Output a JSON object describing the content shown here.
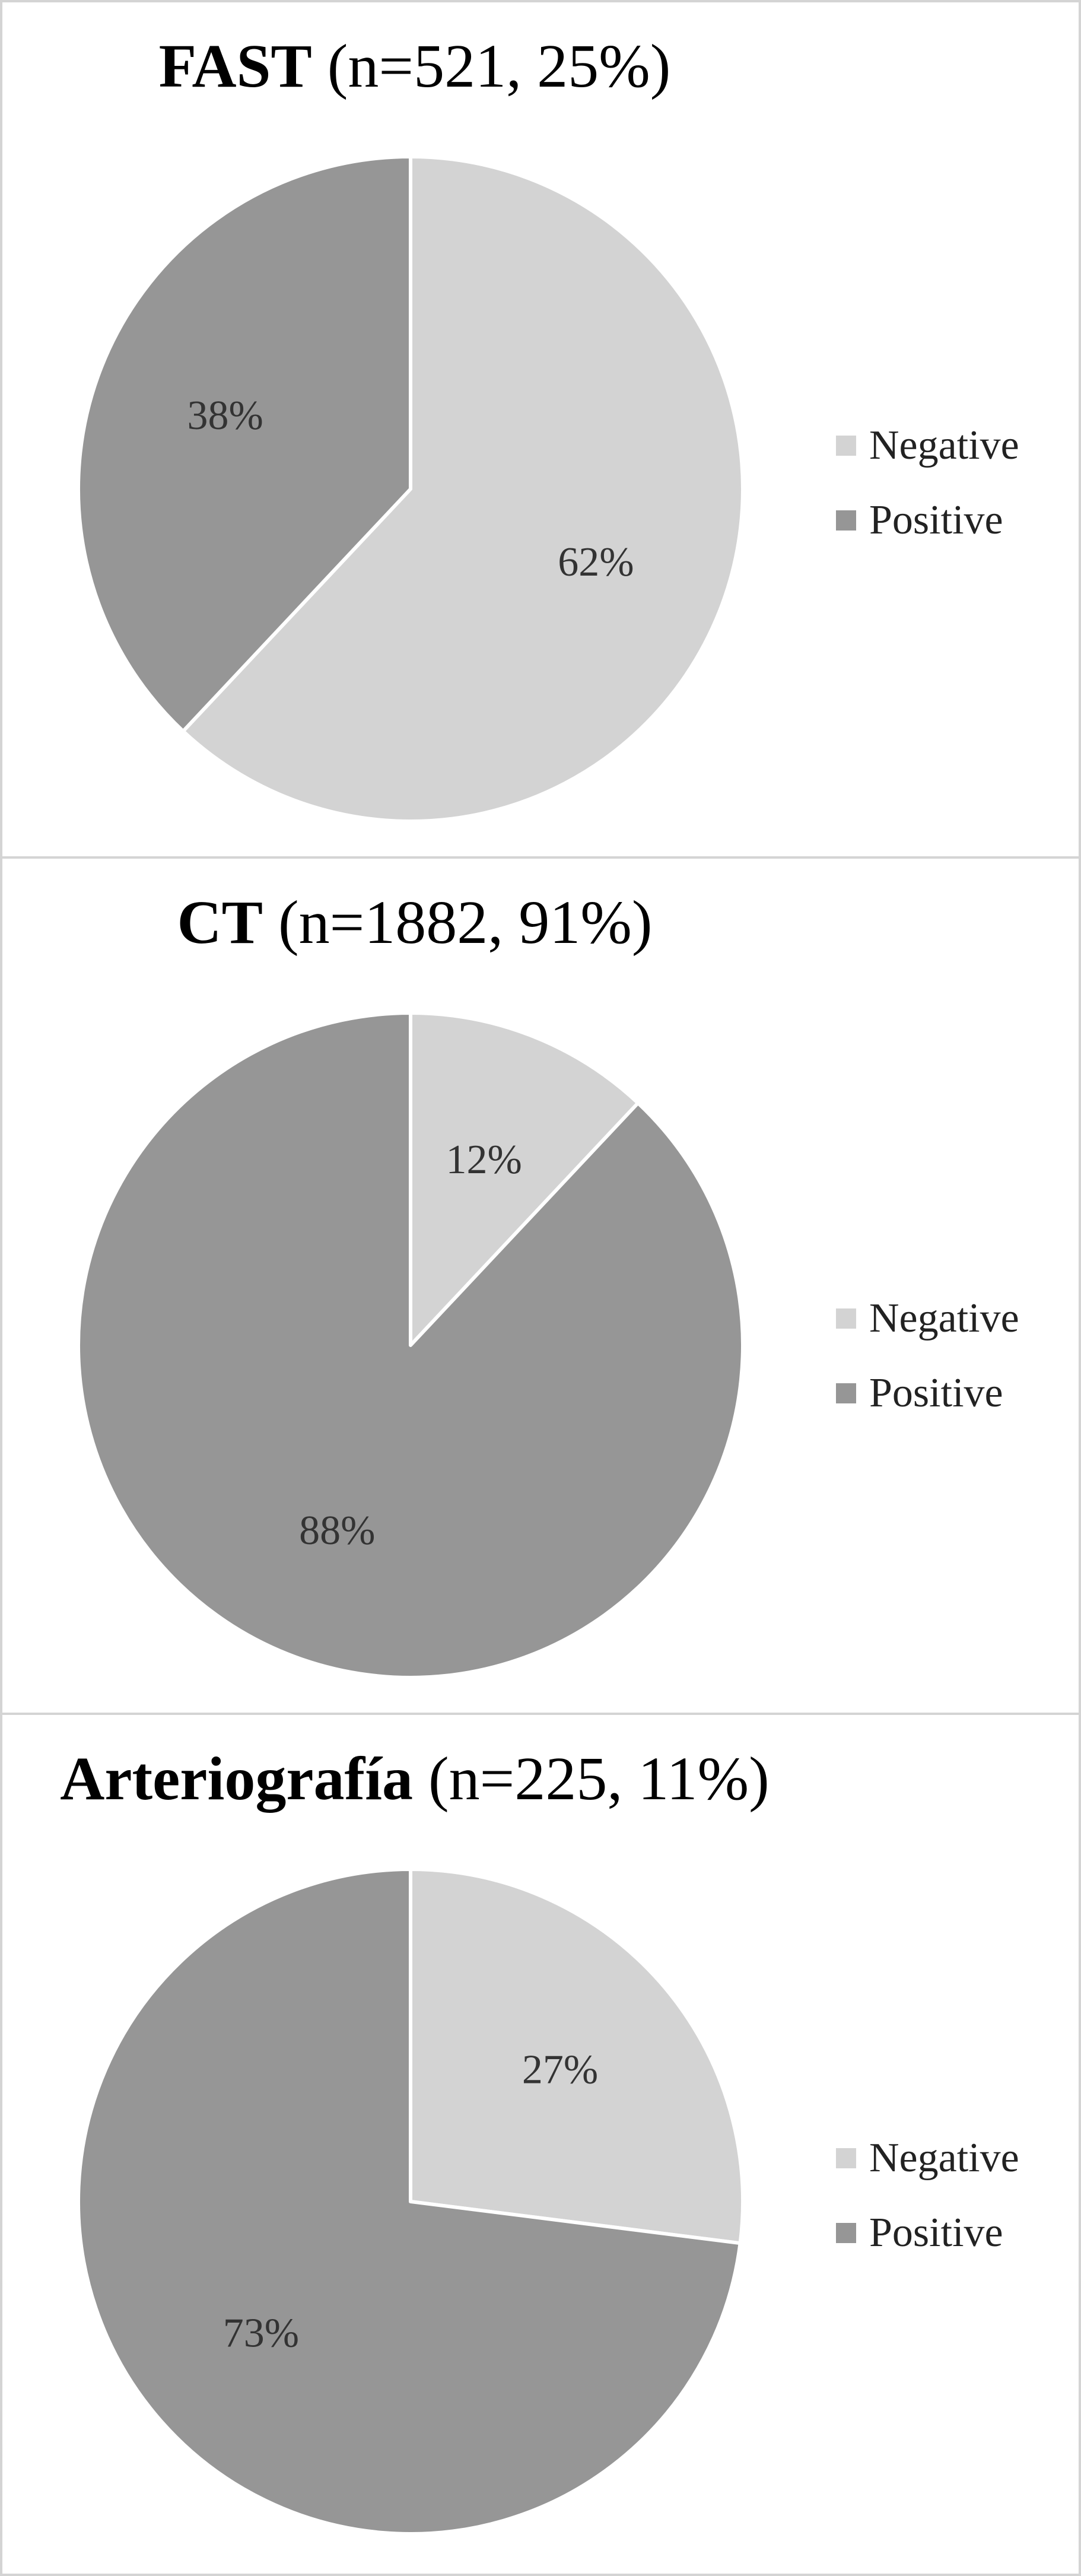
{
  "chart_data": [
    {
      "type": "pie",
      "title": "FAST",
      "subtitle": "(n=521, 25%)",
      "categories": [
        "Negative",
        "Positive"
      ],
      "values": [
        62,
        38
      ],
      "value_labels": [
        "62%",
        "38%"
      ],
      "colors": [
        "#d3d3d3",
        "#969696"
      ],
      "legend_position": "right"
    },
    {
      "type": "pie",
      "title": "CT",
      "subtitle": "(n=1882, 91%)",
      "categories": [
        "Negative",
        "Positive"
      ],
      "values": [
        12,
        88
      ],
      "value_labels": [
        "12%",
        "88%"
      ],
      "colors": [
        "#d3d3d3",
        "#969696"
      ],
      "legend_position": "right"
    },
    {
      "type": "pie",
      "title": "Arteriografía",
      "subtitle": "(n=225, 11%)",
      "categories": [
        "Negative",
        "Positive"
      ],
      "values": [
        27,
        73
      ],
      "value_labels": [
        "27%",
        "73%"
      ],
      "colors": [
        "#d3d3d3",
        "#969696"
      ],
      "legend_position": "right"
    }
  ]
}
